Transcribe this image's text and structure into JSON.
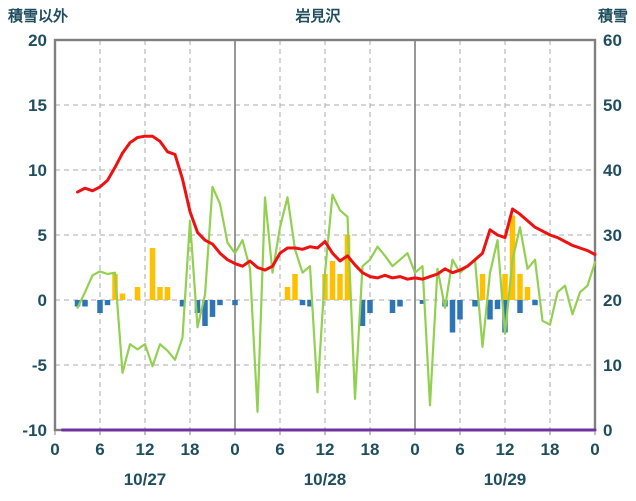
{
  "chart_data": {
    "type": "line",
    "title": "岩見沢",
    "left_axis": {
      "title": "積雪以外",
      "min": -10,
      "max": 20,
      "ticks": [
        20,
        15,
        10,
        5,
        0,
        -5,
        -10
      ]
    },
    "right_axis": {
      "title": "積雪",
      "min": 0,
      "max": 60,
      "ticks": [
        60,
        50,
        40,
        30,
        20,
        10,
        0
      ]
    },
    "x_axis": {
      "hours_total": 72,
      "tick_interval": 6,
      "tick_labels": [
        "0",
        "6",
        "12",
        "18",
        "0",
        "6",
        "12",
        "18",
        "0",
        "6",
        "12",
        "18",
        "0"
      ],
      "day_labels": [
        "10/27",
        "10/28",
        "10/29"
      ],
      "day_label_hours": [
        12,
        36,
        60
      ]
    },
    "style": {
      "axis_text_color": "#1F4E5F",
      "grid_color": "#ABABAB",
      "day_line_color": "#7F7F7F",
      "border_color": "#7F7F7F",
      "background": "#FFFFFF"
    },
    "series": [
      {
        "name": "precipitation-bars",
        "type": "bar",
        "axis": "left",
        "color": "#FFC000",
        "points": [
          [
            8,
            2
          ],
          [
            9,
            0.5
          ],
          [
            11,
            1
          ],
          [
            13,
            4
          ],
          [
            14,
            1
          ],
          [
            15,
            1
          ],
          [
            31,
            1
          ],
          [
            32,
            2
          ],
          [
            36,
            2
          ],
          [
            37,
            3
          ],
          [
            38,
            2
          ],
          [
            39,
            5
          ],
          [
            57,
            2
          ],
          [
            60,
            2
          ],
          [
            61,
            6.5
          ],
          [
            62,
            2
          ],
          [
            63,
            1
          ]
        ]
      },
      {
        "name": "negative-blue-bars",
        "type": "bar",
        "axis": "left",
        "color": "#2E75B6",
        "points": [
          [
            3,
            -0.5
          ],
          [
            4,
            -0.5
          ],
          [
            6,
            -1
          ],
          [
            7,
            -0.4
          ],
          [
            17,
            -0.5
          ],
          [
            19,
            -1
          ],
          [
            20,
            -2
          ],
          [
            21,
            -1.3
          ],
          [
            22,
            -0.4
          ],
          [
            24,
            -0.4
          ],
          [
            33,
            -0.4
          ],
          [
            34,
            -0.5
          ],
          [
            41,
            -2
          ],
          [
            42,
            -1
          ],
          [
            45,
            -1
          ],
          [
            46,
            -0.5
          ],
          [
            49,
            -0.3
          ],
          [
            52,
            -0.5
          ],
          [
            53,
            -2.5
          ],
          [
            54,
            -1.5
          ],
          [
            56,
            -0.5
          ],
          [
            58,
            -1.5
          ],
          [
            59,
            -0.7
          ],
          [
            60,
            -2.5
          ],
          [
            62,
            -1
          ],
          [
            64,
            -0.4
          ]
        ]
      },
      {
        "name": "green-line",
        "type": "line",
        "axis": "left",
        "color": "#92D050",
        "width": 2.2,
        "points": [
          [
            3,
            -0.6
          ],
          [
            4,
            0.6
          ],
          [
            5,
            1.9
          ],
          [
            6,
            2.2
          ],
          [
            7,
            2.0
          ],
          [
            8,
            2.1
          ],
          [
            9,
            -5.6
          ],
          [
            10,
            -3.4
          ],
          [
            11,
            -3.8
          ],
          [
            12,
            -3.4
          ],
          [
            13,
            -5.1
          ],
          [
            14,
            -3.4
          ],
          [
            15,
            -3.9
          ],
          [
            16,
            -4.6
          ],
          [
            17,
            -2.9
          ],
          [
            18,
            6.1
          ],
          [
            19,
            -2.1
          ],
          [
            20,
            0.4
          ],
          [
            21,
            8.7
          ],
          [
            22,
            7.4
          ],
          [
            23,
            4.4
          ],
          [
            24,
            3.6
          ],
          [
            25,
            4.6
          ],
          [
            26,
            2.4
          ],
          [
            27,
            -8.6
          ],
          [
            28,
            7.9
          ],
          [
            29,
            2.1
          ],
          [
            30,
            5.6
          ],
          [
            31,
            7.9
          ],
          [
            32,
            3.9
          ],
          [
            33,
            2.1
          ],
          [
            34,
            2.6
          ],
          [
            35,
            -7.1
          ],
          [
            36,
            2.1
          ],
          [
            37,
            8.1
          ],
          [
            38,
            6.9
          ],
          [
            39,
            6.4
          ],
          [
            40,
            -7.6
          ],
          [
            41,
            2.6
          ],
          [
            42,
            3.1
          ],
          [
            43,
            4.1
          ],
          [
            44,
            3.4
          ],
          [
            45,
            2.6
          ],
          [
            46,
            3.1
          ],
          [
            47,
            3.6
          ],
          [
            48,
            2.1
          ],
          [
            49,
            2.6
          ],
          [
            50,
            -8.1
          ],
          [
            51,
            2.4
          ],
          [
            52,
            -0.6
          ],
          [
            53,
            3.1
          ],
          [
            54,
            2.1
          ],
          [
            55,
            2.6
          ],
          [
            56,
            3.1
          ],
          [
            57,
            -3.6
          ],
          [
            58,
            2.1
          ],
          [
            59,
            4.6
          ],
          [
            60,
            -2.6
          ],
          [
            61,
            3.1
          ],
          [
            62,
            5.6
          ],
          [
            63,
            2.4
          ],
          [
            64,
            3.1
          ],
          [
            65,
            -1.6
          ],
          [
            66,
            -1.9
          ],
          [
            67,
            0.6
          ],
          [
            68,
            1.1
          ],
          [
            69,
            -1.1
          ],
          [
            70,
            0.6
          ],
          [
            71,
            1.1
          ],
          [
            72,
            2.9
          ]
        ]
      },
      {
        "name": "red-temperature-line",
        "type": "line",
        "axis": "left",
        "color": "#EE1111",
        "width": 3,
        "points": [
          [
            3,
            8.3
          ],
          [
            4,
            8.6
          ],
          [
            5,
            8.4
          ],
          [
            6,
            8.7
          ],
          [
            7,
            9.2
          ],
          [
            8,
            10.2
          ],
          [
            9,
            11.3
          ],
          [
            10,
            12.1
          ],
          [
            11,
            12.5
          ],
          [
            12,
            12.6
          ],
          [
            13,
            12.6
          ],
          [
            14,
            12.2
          ],
          [
            15,
            11.4
          ],
          [
            16,
            11.2
          ],
          [
            17,
            9.3
          ],
          [
            18,
            6.8
          ],
          [
            19,
            5.2
          ],
          [
            20,
            4.6
          ],
          [
            21,
            4.3
          ],
          [
            22,
            3.6
          ],
          [
            23,
            3.1
          ],
          [
            24,
            2.8
          ],
          [
            25,
            2.6
          ],
          [
            26,
            3.0
          ],
          [
            27,
            2.5
          ],
          [
            28,
            2.3
          ],
          [
            29,
            2.6
          ],
          [
            30,
            3.6
          ],
          [
            31,
            4.0
          ],
          [
            32,
            4.0
          ],
          [
            33,
            3.9
          ],
          [
            34,
            4.1
          ],
          [
            35,
            4.0
          ],
          [
            36,
            4.5
          ],
          [
            37,
            3.6
          ],
          [
            38,
            3.0
          ],
          [
            39,
            3.4
          ],
          [
            40,
            2.7
          ],
          [
            41,
            2.1
          ],
          [
            42,
            1.8
          ],
          [
            43,
            1.7
          ],
          [
            44,
            1.9
          ],
          [
            45,
            1.7
          ],
          [
            46,
            1.8
          ],
          [
            47,
            1.6
          ],
          [
            48,
            1.7
          ],
          [
            49,
            1.6
          ],
          [
            50,
            1.8
          ],
          [
            51,
            2.0
          ],
          [
            52,
            2.4
          ],
          [
            53,
            2.1
          ],
          [
            54,
            2.3
          ],
          [
            55,
            2.6
          ],
          [
            56,
            3.1
          ],
          [
            57,
            3.6
          ],
          [
            58,
            5.4
          ],
          [
            59,
            5.0
          ],
          [
            60,
            4.8
          ],
          [
            61,
            7.0
          ],
          [
            62,
            6.6
          ],
          [
            63,
            6.1
          ],
          [
            64,
            5.6
          ],
          [
            65,
            5.3
          ],
          [
            66,
            5.0
          ],
          [
            67,
            4.8
          ],
          [
            68,
            4.5
          ],
          [
            69,
            4.2
          ],
          [
            70,
            4.0
          ],
          [
            71,
            3.8
          ],
          [
            72,
            3.5
          ]
        ]
      },
      {
        "name": "purple-snow-depth-line",
        "type": "line",
        "axis": "right",
        "color": "#7030A0",
        "width": 3,
        "points": [
          [
            1,
            0
          ],
          [
            72,
            0
          ]
        ]
      }
    ]
  }
}
